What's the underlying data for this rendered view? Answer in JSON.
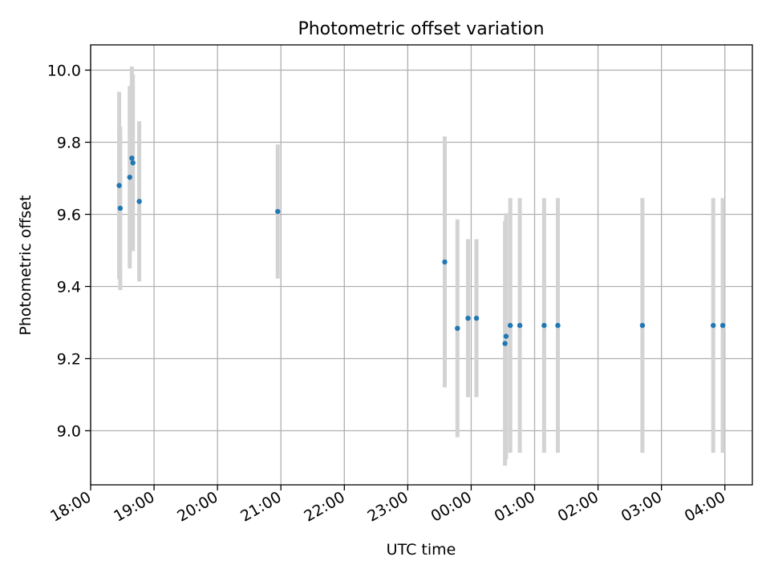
{
  "chart_data": {
    "type": "scatter",
    "title": "Photometric offset variation",
    "xlabel": "UTC time",
    "ylabel": "Photometric offset",
    "x_tick_labels": [
      "18:00",
      "19:00",
      "20:00",
      "21:00",
      "22:00",
      "23:00",
      "00:00",
      "01:00",
      "02:00",
      "03:00",
      "04:00"
    ],
    "y_ticks": [
      9.0,
      9.2,
      9.4,
      9.6,
      9.8,
      10.0
    ],
    "y_tick_labels": [
      "9.0",
      "9.2",
      "9.4",
      "9.6",
      "9.8",
      "10.0"
    ],
    "xlim": [
      "18:00",
      "04:26"
    ],
    "ylim": [
      8.85,
      10.07
    ],
    "grid": true,
    "colors": {
      "marker": "#1f77b4",
      "errorbar": "#d3d3d3",
      "grid": "#b0b0b0"
    },
    "points": [
      {
        "time": "18:27",
        "y": 9.68,
        "yerr": 0.26
      },
      {
        "time": "18:28",
        "y": 9.617,
        "yerr": 0.227
      },
      {
        "time": "18:37",
        "y": 9.703,
        "yerr": 0.253
      },
      {
        "time": "18:39",
        "y": 9.756,
        "yerr": 0.254
      },
      {
        "time": "18:40",
        "y": 9.743,
        "yerr": 0.245
      },
      {
        "time": "18:46",
        "y": 9.636,
        "yerr": 0.222
      },
      {
        "time": "20:57",
        "y": 9.608,
        "yerr": 0.186
      },
      {
        "time": "23:35",
        "y": 9.468,
        "yerr": 0.348
      },
      {
        "time": "23:47",
        "y": 9.284,
        "yerr": 0.302
      },
      {
        "time": "23:57",
        "y": 9.312,
        "yerr": 0.219
      },
      {
        "time": "00:05",
        "y": 9.312,
        "yerr": 0.219
      },
      {
        "time": "00:32",
        "y": 9.242,
        "yerr": 0.339
      },
      {
        "time": "00:33",
        "y": 9.262,
        "yerr": 0.341
      },
      {
        "time": "00:37",
        "y": 9.292,
        "yerr": 0.353
      },
      {
        "time": "00:46",
        "y": 9.292,
        "yerr": 0.353
      },
      {
        "time": "01:09",
        "y": 9.292,
        "yerr": 0.353
      },
      {
        "time": "01:22",
        "y": 9.292,
        "yerr": 0.353
      },
      {
        "time": "02:42",
        "y": 9.292,
        "yerr": 0.353
      },
      {
        "time": "03:49",
        "y": 9.292,
        "yerr": 0.353
      },
      {
        "time": "03:58",
        "y": 9.292,
        "yerr": 0.353
      }
    ]
  }
}
